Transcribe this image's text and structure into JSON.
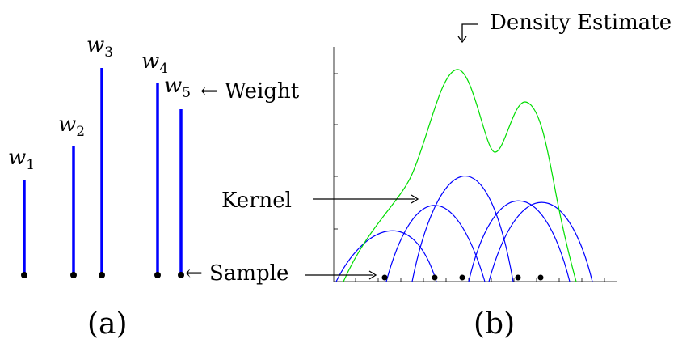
{
  "panel_a": {
    "caption": "(a)",
    "samples": [
      {
        "label": "w",
        "sub": "1"
      },
      {
        "label": "w",
        "sub": "2"
      },
      {
        "label": "w",
        "sub": "3"
      },
      {
        "label": "w",
        "sub": "4"
      },
      {
        "label": "w",
        "sub": "5"
      }
    ],
    "weight_annotation": "← Weight",
    "sample_annotation": "←  Sample",
    "bar_color": "#0000ff",
    "dot_color": "#000000"
  },
  "panel_b": {
    "caption": "(b)",
    "density_label": "Density Estimate",
    "kernel_label": "Kernel",
    "kernel_color": "#0000ff",
    "density_color": "#00dd00"
  }
}
